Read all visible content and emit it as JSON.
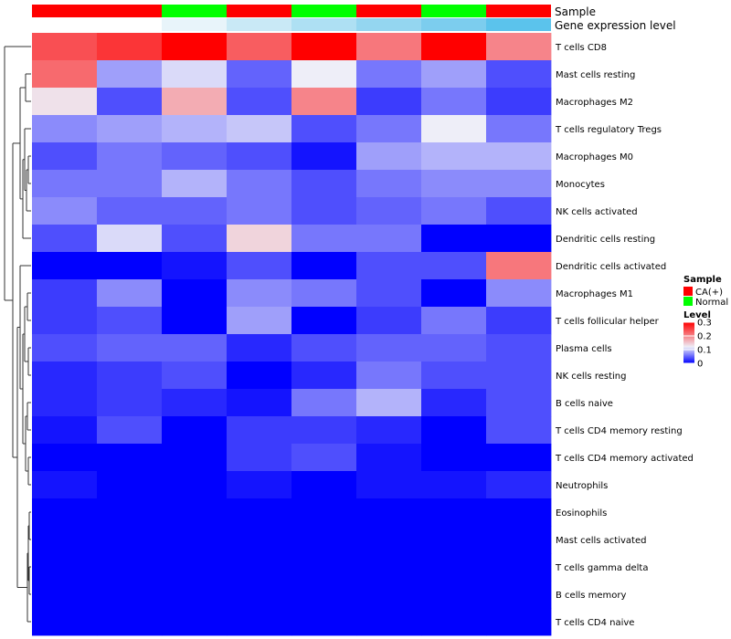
{
  "chart_data": {
    "type": "heatmap",
    "title": "",
    "annotation_rows": [
      {
        "label": "Sample"
      },
      {
        "label": "Gene expression level"
      }
    ],
    "columns": [
      {
        "sample": "CA(+)",
        "expression_level_shade": "#ffffff"
      },
      {
        "sample": "CA(+)",
        "expression_level_shade": "#ffffff"
      },
      {
        "sample": "Normal",
        "expression_level_shade": "#e8f4fa"
      },
      {
        "sample": "CA(+)",
        "expression_level_shade": "#c9e9f6"
      },
      {
        "sample": "Normal",
        "expression_level_shade": "#aee0f3"
      },
      {
        "sample": "CA(+)",
        "expression_level_shade": "#94d6f0"
      },
      {
        "sample": "Normal",
        "expression_level_shade": "#7ccdee"
      },
      {
        "sample": "CA(+)",
        "expression_level_shade": "#5bc3ec"
      }
    ],
    "rows": [
      "T cells CD8",
      "Mast cells resting",
      "Macrophages M2",
      "T cells regulatory  Tregs",
      "Macrophages M0",
      "Monocytes",
      "NK cells activated",
      "Dendritic cells resting",
      "Dendritic cells activated",
      "Macrophages M1",
      "T cells follicular helper",
      "Plasma cells",
      "NK cells resting",
      "B cells naive",
      "T cells CD4 memory resting",
      "T cells CD4 memory activated",
      "Neutrophils",
      "Eosinophils",
      "Mast cells activated",
      "T cells gamma delta",
      "B cells memory",
      "T cells CD4 naive"
    ],
    "values": [
      [
        0.24,
        0.26,
        0.3,
        0.23,
        0.3,
        0.21,
        0.3,
        0.2
      ],
      [
        0.22,
        0.08,
        0.11,
        0.05,
        0.12,
        0.06,
        0.08,
        0.04
      ],
      [
        0.13,
        0.04,
        0.17,
        0.04,
        0.2,
        0.03,
        0.06,
        0.03
      ],
      [
        0.07,
        0.08,
        0.09,
        0.1,
        0.04,
        0.06,
        0.12,
        0.06
      ],
      [
        0.04,
        0.06,
        0.05,
        0.04,
        0.01,
        0.08,
        0.09,
        0.09
      ],
      [
        0.06,
        0.06,
        0.09,
        0.06,
        0.04,
        0.06,
        0.07,
        0.07
      ],
      [
        0.07,
        0.05,
        0.05,
        0.06,
        0.04,
        0.05,
        0.06,
        0.04
      ],
      [
        0.04,
        0.11,
        0.04,
        0.14,
        0.06,
        0.06,
        0.0,
        0.0
      ],
      [
        0.0,
        0.0,
        0.01,
        0.04,
        0.0,
        0.04,
        0.04,
        0.21
      ],
      [
        0.03,
        0.07,
        0.0,
        0.07,
        0.06,
        0.04,
        0.0,
        0.07
      ],
      [
        0.03,
        0.04,
        0.0,
        0.08,
        0.0,
        0.03,
        0.06,
        0.03
      ],
      [
        0.04,
        0.05,
        0.05,
        0.02,
        0.04,
        0.05,
        0.05,
        0.04
      ],
      [
        0.02,
        0.03,
        0.04,
        0.0,
        0.02,
        0.06,
        0.04,
        0.04
      ],
      [
        0.02,
        0.03,
        0.02,
        0.01,
        0.06,
        0.09,
        0.02,
        0.04
      ],
      [
        0.01,
        0.04,
        0.0,
        0.03,
        0.03,
        0.02,
        0.0,
        0.04
      ],
      [
        0.0,
        0.0,
        0.0,
        0.03,
        0.04,
        0.01,
        0.0,
        0.0
      ],
      [
        0.01,
        0.0,
        0.0,
        0.01,
        0.0,
        0.01,
        0.01,
        0.02
      ],
      [
        0.0,
        0.0,
        0.0,
        0.0,
        0.0,
        0.0,
        0.0,
        0.0
      ],
      [
        0.0,
        0.0,
        0.0,
        0.0,
        0.0,
        0.0,
        0.0,
        0.0
      ],
      [
        0.0,
        0.0,
        0.0,
        0.0,
        0.0,
        0.0,
        0.0,
        0.0
      ],
      [
        0.0,
        0.0,
        0.0,
        0.0,
        0.0,
        0.0,
        0.0,
        0.0
      ],
      [
        0.0,
        0.0,
        0.0,
        0.0,
        0.0,
        0.0,
        0.0,
        0.0
      ]
    ],
    "color_scale": {
      "min": 0,
      "max": 0.3,
      "stops": [
        {
          "value": 0,
          "color": "#0000ff"
        },
        {
          "value": 0.12,
          "color": "#eeeef8"
        },
        {
          "value": 0.3,
          "color": "#ff0000"
        }
      ]
    },
    "legend": {
      "placement": "right",
      "sample_title": "Sample",
      "sample_items": [
        {
          "label": "CA(+)",
          "color": "#ff0000"
        },
        {
          "label": "Normal",
          "color": "#00ff00"
        }
      ],
      "level_title": "Level",
      "level_ticks": [
        {
          "label": "0.3",
          "value": 0.3
        },
        {
          "label": "0.2",
          "value": 0.2
        },
        {
          "label": "0.1",
          "value": 0.1
        },
        {
          "label": "0",
          "value": 0
        }
      ]
    },
    "dendrogram": {
      "side": "left",
      "clustered": "rows"
    }
  }
}
